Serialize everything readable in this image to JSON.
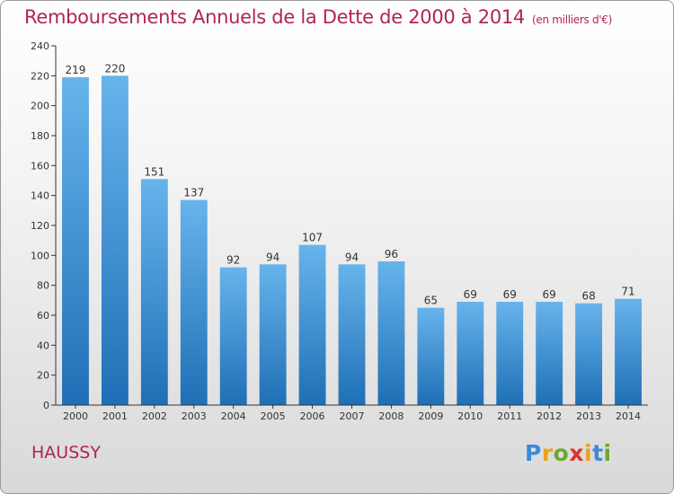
{
  "header": {
    "title": "Remboursements Annuels de la Dette de 2000 à 2014",
    "unit": "(en milliers d'€)"
  },
  "commune": "HAUSSY",
  "logo": {
    "letters": [
      "P",
      "r",
      "o",
      "x",
      "i",
      "t",
      "i"
    ],
    "colors": [
      "#3b8ad8",
      "#e8a21b",
      "#6aa92f",
      "#d8362c",
      "#e8a21b",
      "#3b8ad8",
      "#6aa92f"
    ]
  },
  "colors": {
    "title": "#b0245a",
    "bar_top": "#67b4ec",
    "bar_bottom": "#1f6fb6",
    "axis": "#333333"
  },
  "chart_data": {
    "type": "bar",
    "categories": [
      "2000",
      "2001",
      "2002",
      "2003",
      "2004",
      "2005",
      "2006",
      "2007",
      "2008",
      "2009",
      "2010",
      "2011",
      "2012",
      "2013",
      "2014"
    ],
    "values": [
      219,
      220,
      151,
      137,
      92,
      94,
      107,
      94,
      96,
      65,
      69,
      69,
      69,
      68,
      71
    ],
    "title": "Remboursements Annuels de la Dette de 2000 à 2014",
    "ylim": [
      0,
      240
    ],
    "yticks": [
      0,
      20,
      40,
      60,
      80,
      100,
      120,
      140,
      160,
      180,
      200,
      220,
      240
    ],
    "grid": false,
    "data_labels": true
  }
}
